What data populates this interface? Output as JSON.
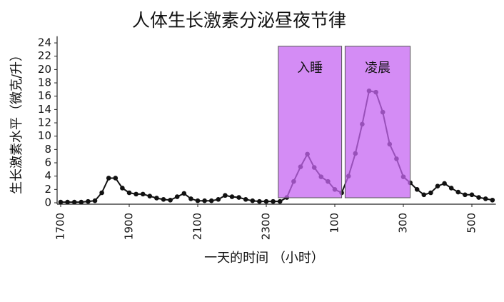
{
  "chart_data": {
    "type": "line",
    "title": "人体生长激素分泌昼夜节律",
    "x_label": "一天的时间 （小时）",
    "y_label": "生长激素水平（微克/升）",
    "x": [
      0,
      0.2,
      0.4,
      0.6,
      0.8,
      1,
      1.2,
      1.4,
      1.6,
      1.8,
      2,
      2.2,
      2.4,
      2.6,
      2.8,
      3,
      3.2,
      3.4,
      3.6,
      3.8,
      4,
      4.2,
      4.4,
      4.6,
      4.8,
      5,
      5.2,
      5.4,
      5.6,
      5.8,
      6,
      6.2,
      6.4,
      6.6,
      6.8,
      7,
      7.2,
      7.4,
      7.6,
      7.8,
      8,
      8.2,
      8.4,
      8.6,
      8.8,
      9,
      9.2,
      9.4,
      9.6,
      9.8,
      10,
      10.2,
      10.4,
      10.6,
      10.8,
      11,
      11.2,
      11.4,
      11.6,
      11.8,
      12,
      12.2,
      12.4,
      12.6
    ],
    "series": [
      {
        "name": "生长激素",
        "color": "#111111",
        "values": [
          0.1,
          0.1,
          0.1,
          0.1,
          0.2,
          0.3,
          1.5,
          3.7,
          3.7,
          2.2,
          1.5,
          1.3,
          1.3,
          1.0,
          0.7,
          0.5,
          0.4,
          0.9,
          1.4,
          0.6,
          0.3,
          0.3,
          0.3,
          0.5,
          1.1,
          0.9,
          0.8,
          0.5,
          0.3,
          0.2,
          0.2,
          0.2,
          0.2,
          0.8,
          3.2,
          5.4,
          7.3,
          5.3,
          3.9,
          3.2,
          2.0,
          1.5,
          4.0,
          7.4,
          11.8,
          16.8,
          16.6,
          13.6,
          8.8,
          6.6,
          3.9,
          3.0,
          2.0,
          1.2,
          1.5,
          2.5,
          2.9,
          2.2,
          1.6,
          1.2,
          1.2,
          0.8,
          0.6,
          0.4
        ]
      }
    ],
    "regions": [
      {
        "label": "入睡",
        "start": 6.35,
        "end": 8.2,
        "color": "#c566f2"
      },
      {
        "label": "凌晨",
        "start": 8.3,
        "end": 10.2,
        "color": "#c566f2"
      }
    ],
    "xlim": [
      0,
      12.7
    ],
    "ylim": [
      0,
      25
    ],
    "xticks": [
      {
        "value": 0,
        "label": "1700"
      },
      {
        "value": 2,
        "label": "1900"
      },
      {
        "value": 4,
        "label": "2100"
      },
      {
        "value": 6,
        "label": "2300"
      },
      {
        "value": 8,
        "label": "100"
      },
      {
        "value": 10,
        "label": "300"
      },
      {
        "value": 12,
        "label": "500"
      }
    ],
    "yticks": [
      0,
      2,
      4,
      6,
      8,
      10,
      12,
      14,
      16,
      18,
      20,
      22,
      24
    ]
  }
}
